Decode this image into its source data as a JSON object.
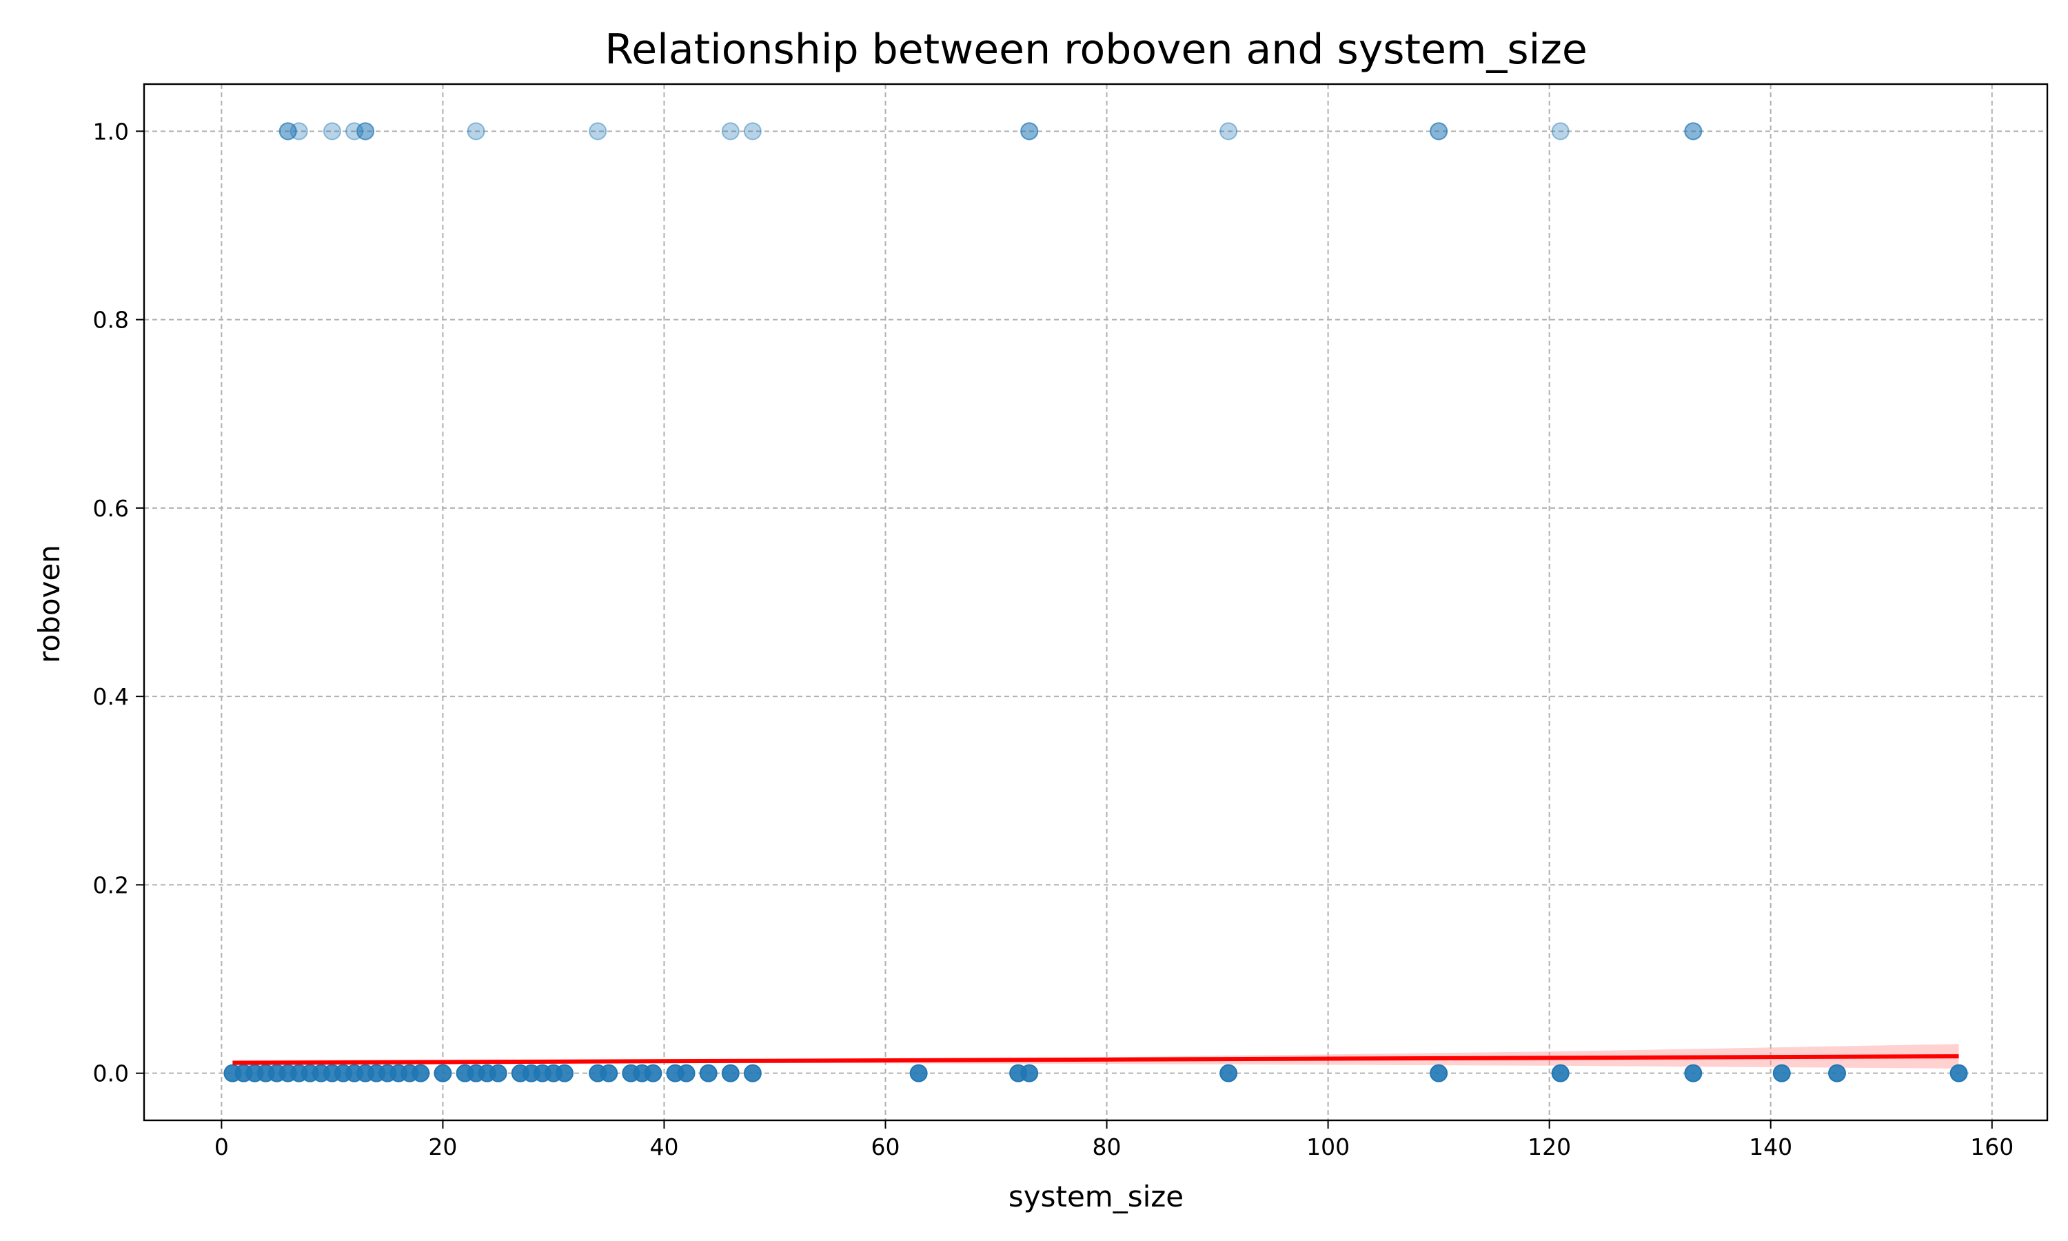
{
  "chart_data": {
    "type": "scatter",
    "title": "Relationship between roboven and system_size",
    "xlabel": "system_size",
    "ylabel": "roboven",
    "xlim": [
      -7,
      165
    ],
    "ylim": [
      -0.05,
      1.05
    ],
    "x_ticks": [
      0,
      20,
      40,
      60,
      80,
      100,
      120,
      140,
      160
    ],
    "x_tick_labels": [
      "0",
      "20",
      "40",
      "60",
      "80",
      "100",
      "120",
      "140",
      "160"
    ],
    "y_ticks": [
      0.0,
      0.2,
      0.4,
      0.6,
      0.8,
      1.0
    ],
    "y_tick_labels": [
      "0.0",
      "0.2",
      "0.4",
      "0.6",
      "0.8",
      "1.0"
    ],
    "grid": true,
    "point_color": "#1f77b4",
    "fit_color": "#ff0000",
    "ci_color": "#ff9999",
    "points_zero": [
      1,
      2,
      3,
      4,
      5,
      6,
      7,
      8,
      9,
      10,
      11,
      12,
      13,
      14,
      15,
      16,
      17,
      18,
      20,
      22,
      23,
      24,
      25,
      27,
      28,
      29,
      30,
      31,
      34,
      35,
      37,
      38,
      39,
      41,
      42,
      44,
      46,
      48,
      63,
      72,
      73,
      91,
      110,
      121,
      133,
      141,
      146,
      157
    ],
    "points_one": [
      6,
      6,
      7,
      10,
      12,
      13,
      13,
      23,
      34,
      46,
      48,
      73,
      73,
      91,
      110,
      110,
      121,
      133,
      133
    ],
    "regression_line": {
      "x": [
        1,
        157
      ],
      "y": [
        0.011,
        0.018
      ]
    },
    "confidence_band": {
      "x": [
        1,
        40,
        80,
        120,
        157
      ],
      "lower": [
        0.008,
        0.011,
        0.01,
        0.008,
        0.005
      ],
      "upper": [
        0.014,
        0.015,
        0.017,
        0.023,
        0.031
      ]
    }
  }
}
